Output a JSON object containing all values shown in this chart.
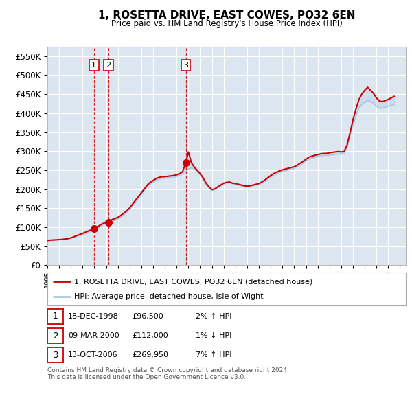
{
  "title": "1, ROSETTA DRIVE, EAST COWES, PO32 6EN",
  "subtitle": "Price paid vs. HM Land Registry's House Price Index (HPI)",
  "ylabel_ticks": [
    "£0",
    "£50K",
    "£100K",
    "£150K",
    "£200K",
    "£250K",
    "£300K",
    "£350K",
    "£400K",
    "£450K",
    "£500K",
    "£550K"
  ],
  "ylim": [
    0,
    575000
  ],
  "xlim_start": 1995.0,
  "xlim_end": 2025.5,
  "background_color": "#ffffff",
  "plot_bg_color": "#dce6f0",
  "grid_color": "#ffffff",
  "hpi_color": "#a8c8e8",
  "price_color": "#cc0000",
  "sale_marker_color": "#cc0000",
  "dashed_line_color": "#cc0000",
  "legend_label_price": "1, ROSETTA DRIVE, EAST COWES, PO32 6EN (detached house)",
  "legend_label_hpi": "HPI: Average price, detached house, Isle of Wight",
  "footer_text": "Contains HM Land Registry data © Crown copyright and database right 2024.\nThis data is licensed under the Open Government Licence v3.0.",
  "sales": [
    {
      "label": "1",
      "date_str": "18-DEC-1998",
      "date_x": 1998.96,
      "price": 96500,
      "hpi_pct": "2%",
      "hpi_dir": "↑"
    },
    {
      "label": "2",
      "date_str": "09-MAR-2000",
      "date_x": 2000.19,
      "price": 112000,
      "hpi_pct": "1%",
      "hpi_dir": "↓"
    },
    {
      "label": "3",
      "date_str": "13-OCT-2006",
      "date_x": 2006.78,
      "price": 269950,
      "hpi_pct": "7%",
      "hpi_dir": "↑"
    }
  ],
  "hpi_data_x": [
    1995.0,
    1995.25,
    1995.5,
    1995.75,
    1996.0,
    1996.25,
    1996.5,
    1996.75,
    1997.0,
    1997.25,
    1997.5,
    1997.75,
    1998.0,
    1998.25,
    1998.5,
    1998.75,
    1999.0,
    1999.25,
    1999.5,
    1999.75,
    2000.0,
    2000.25,
    2000.5,
    2000.75,
    2001.0,
    2001.25,
    2001.5,
    2001.75,
    2002.0,
    2002.25,
    2002.5,
    2002.75,
    2003.0,
    2003.25,
    2003.5,
    2003.75,
    2004.0,
    2004.25,
    2004.5,
    2004.75,
    2005.0,
    2005.25,
    2005.5,
    2005.75,
    2006.0,
    2006.25,
    2006.5,
    2006.75,
    2007.0,
    2007.25,
    2007.5,
    2007.75,
    2008.0,
    2008.25,
    2008.5,
    2008.75,
    2009.0,
    2009.25,
    2009.5,
    2009.75,
    2010.0,
    2010.25,
    2010.5,
    2010.75,
    2011.0,
    2011.25,
    2011.5,
    2011.75,
    2012.0,
    2012.25,
    2012.5,
    2012.75,
    2013.0,
    2013.25,
    2013.5,
    2013.75,
    2014.0,
    2014.25,
    2014.5,
    2014.75,
    2015.0,
    2015.25,
    2015.5,
    2015.75,
    2016.0,
    2016.25,
    2016.5,
    2016.75,
    2017.0,
    2017.25,
    2017.5,
    2017.75,
    2018.0,
    2018.25,
    2018.5,
    2018.75,
    2019.0,
    2019.25,
    2019.5,
    2019.75,
    2020.0,
    2020.25,
    2020.5,
    2020.75,
    2021.0,
    2021.25,
    2021.5,
    2021.75,
    2022.0,
    2022.25,
    2022.5,
    2022.75,
    2023.0,
    2023.25,
    2023.5,
    2023.75,
    2024.0,
    2024.25,
    2024.5
  ],
  "hpi_data_y": [
    65000,
    66000,
    66500,
    67000,
    67500,
    68000,
    69000,
    70000,
    72000,
    74000,
    76500,
    79000,
    81000,
    84000,
    87000,
    90000,
    93000,
    97000,
    102000,
    107000,
    110000,
    113000,
    116000,
    119000,
    122000,
    127000,
    133000,
    139000,
    147000,
    157000,
    167000,
    177000,
    187000,
    197000,
    207000,
    214000,
    219000,
    224000,
    227000,
    229000,
    229000,
    230000,
    231000,
    232000,
    234000,
    237000,
    241000,
    247000,
    253000,
    256000,
    253000,
    246000,
    238000,
    226000,
    213000,
    203000,
    197000,
    199000,
    204000,
    209000,
    214000,
    216000,
    217000,
    215000,
    213000,
    211000,
    209000,
    207000,
    206000,
    207000,
    209000,
    211000,
    213000,
    217000,
    222000,
    227000,
    232000,
    237000,
    241000,
    244000,
    247000,
    249000,
    251000,
    253000,
    255000,
    259000,
    264000,
    269000,
    274000,
    279000,
    282000,
    284000,
    286000,
    288000,
    289000,
    289000,
    290000,
    291000,
    292000,
    293000,
    292000,
    295000,
    312000,
    342000,
    368000,
    393000,
    413000,
    423000,
    428000,
    433000,
    430000,
    426000,
    418000,
    413000,
    413000,
    416000,
    418000,
    420000,
    423000
  ],
  "price_data_x": [
    1995.0,
    1995.25,
    1995.5,
    1995.75,
    1996.0,
    1996.25,
    1996.5,
    1996.75,
    1997.0,
    1997.25,
    1997.5,
    1997.75,
    1998.0,
    1998.25,
    1998.5,
    1998.75,
    1998.96,
    1999.25,
    1999.5,
    1999.75,
    2000.0,
    2000.19,
    2000.5,
    2000.75,
    2001.0,
    2001.25,
    2001.5,
    2001.75,
    2002.0,
    2002.25,
    2002.5,
    2002.75,
    2003.0,
    2003.25,
    2003.5,
    2003.75,
    2004.0,
    2004.25,
    2004.5,
    2004.75,
    2005.0,
    2005.25,
    2005.5,
    2005.75,
    2006.0,
    2006.25,
    2006.5,
    2006.78,
    2007.0,
    2007.25,
    2007.5,
    2007.75,
    2008.0,
    2008.25,
    2008.5,
    2008.75,
    2009.0,
    2009.25,
    2009.5,
    2009.75,
    2010.0,
    2010.25,
    2010.5,
    2010.75,
    2011.0,
    2011.25,
    2011.5,
    2011.75,
    2012.0,
    2012.25,
    2012.5,
    2012.75,
    2013.0,
    2013.25,
    2013.5,
    2013.75,
    2014.0,
    2014.25,
    2014.5,
    2014.75,
    2015.0,
    2015.25,
    2015.5,
    2015.75,
    2016.0,
    2016.25,
    2016.5,
    2016.75,
    2017.0,
    2017.25,
    2017.5,
    2017.75,
    2018.0,
    2018.25,
    2018.5,
    2018.75,
    2019.0,
    2019.25,
    2019.5,
    2019.75,
    2020.0,
    2020.25,
    2020.5,
    2020.75,
    2021.0,
    2021.25,
    2021.5,
    2021.75,
    2022.0,
    2022.25,
    2022.5,
    2022.75,
    2023.0,
    2023.25,
    2023.5,
    2023.75,
    2024.0,
    2024.25,
    2024.5
  ],
  "price_data_y": [
    65000,
    66000,
    66500,
    67000,
    67500,
    68000,
    69000,
    70000,
    72000,
    75000,
    78000,
    81000,
    84000,
    87000,
    90500,
    93500,
    96500,
    101000,
    106000,
    110000,
    113000,
    112000,
    120000,
    123000,
    126000,
    131000,
    137000,
    143000,
    151000,
    161000,
    171000,
    181000,
    191000,
    201000,
    211000,
    218000,
    223000,
    228000,
    231000,
    233000,
    233000,
    234000,
    235000,
    236000,
    238000,
    241000,
    246000,
    269950,
    298000,
    270000,
    258000,
    250000,
    241000,
    230000,
    216000,
    206000,
    199000,
    201000,
    206000,
    211000,
    216000,
    218000,
    219000,
    216000,
    215000,
    213000,
    211000,
    209000,
    208000,
    209000,
    211000,
    213000,
    215000,
    219000,
    224000,
    230000,
    236000,
    241000,
    245000,
    248000,
    251000,
    253000,
    255000,
    257000,
    259000,
    263000,
    268000,
    273000,
    279000,
    284000,
    287000,
    289000,
    291000,
    293000,
    294000,
    294000,
    296000,
    297000,
    298000,
    299000,
    298000,
    299000,
    316000,
    348000,
    382000,
    410000,
    435000,
    450000,
    460000,
    468000,
    460000,
    452000,
    440000,
    432000,
    430000,
    433000,
    436000,
    440000,
    444000
  ]
}
